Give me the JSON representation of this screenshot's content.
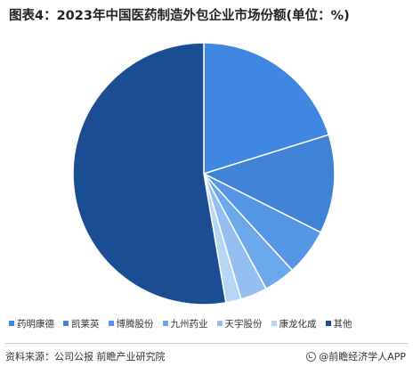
{
  "title": "图表4：2023年中国医药制造外包企业市场份额(单位：%)",
  "chart_data": {
    "type": "pie",
    "title": "图表4：2023年中国医药制造外包企业市场份额(单位：%)",
    "categories": [
      "药明康德",
      "凯莱英",
      "博腾股份",
      "九州药业",
      "天宇股份",
      "康龙化成",
      "其他"
    ],
    "values": [
      20.2,
      12.2,
      5.8,
      3.9,
      3.3,
      1.9,
      52.7
    ],
    "colors": [
      "#3f87e0",
      "#3f82d6",
      "#5597e6",
      "#6aa8ea",
      "#93c0f0",
      "#b7d6f6",
      "#1a4d92"
    ],
    "start_angle_deg": 0,
    "direction": "clockwise",
    "legend_position": "bottom"
  },
  "legend": [
    {
      "label": "药明康德",
      "color": "#3f87e0"
    },
    {
      "label": "凯莱英",
      "color": "#3f82d6"
    },
    {
      "label": "博腾股份",
      "color": "#5597e6"
    },
    {
      "label": "九州药业",
      "color": "#6aa8ea"
    },
    {
      "label": "天宇股份",
      "color": "#93c0f0"
    },
    {
      "label": "康龙化成",
      "color": "#b7d6f6"
    },
    {
      "label": "其他",
      "color": "#1a4d92"
    }
  ],
  "footer": {
    "source": "资料来源：公司公报 前瞻产业研究院",
    "brand": "@前瞻经济学人APP"
  }
}
